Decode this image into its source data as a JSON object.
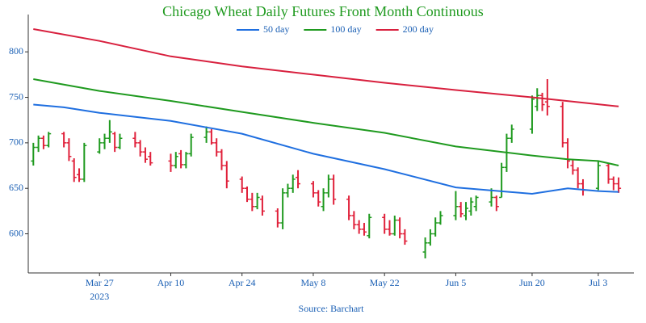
{
  "chart_data": {
    "type": "ohlc",
    "title": "Chicago Wheat Daily Futures Front Month Continuous",
    "source": "Source: Barchart",
    "up_color": "#1f9a1f",
    "down_color": "#e0203a",
    "x": [
      "2023-03-14",
      "2023-03-15",
      "2023-03-16",
      "2023-03-17",
      "2023-03-20",
      "2023-03-21",
      "2023-03-22",
      "2023-03-23",
      "2023-03-24",
      "2023-03-27",
      "2023-03-28",
      "2023-03-29",
      "2023-03-30",
      "2023-03-31",
      "2023-04-03",
      "2023-04-04",
      "2023-04-05",
      "2023-04-06",
      "2023-04-10",
      "2023-04-11",
      "2023-04-12",
      "2023-04-13",
      "2023-04-14",
      "2023-04-17",
      "2023-04-18",
      "2023-04-19",
      "2023-04-20",
      "2023-04-21",
      "2023-04-24",
      "2023-04-25",
      "2023-04-26",
      "2023-04-27",
      "2023-04-28",
      "2023-05-01",
      "2023-05-02",
      "2023-05-03",
      "2023-05-04",
      "2023-05-05",
      "2023-05-08",
      "2023-05-09",
      "2023-05-10",
      "2023-05-11",
      "2023-05-12",
      "2023-05-15",
      "2023-05-16",
      "2023-05-17",
      "2023-05-18",
      "2023-05-19",
      "2023-05-22",
      "2023-05-23",
      "2023-05-24",
      "2023-05-25",
      "2023-05-26",
      "2023-05-30",
      "2023-05-31",
      "2023-06-01",
      "2023-06-02",
      "2023-06-05",
      "2023-06-06",
      "2023-06-07",
      "2023-06-08",
      "2023-06-09",
      "2023-06-12",
      "2023-06-13",
      "2023-06-14",
      "2023-06-15",
      "2023-06-16",
      "2023-06-20",
      "2023-06-21",
      "2023-06-22",
      "2023-06-23",
      "2023-06-26",
      "2023-06-27",
      "2023-06-28",
      "2023-06-29",
      "2023-06-30",
      "2023-07-03",
      "2023-07-05",
      "2023-07-06",
      "2023-07-07"
    ],
    "open": [
      680,
      695,
      705,
      697,
      710,
      700,
      680,
      665,
      660,
      690,
      700,
      705,
      710,
      695,
      705,
      700,
      690,
      685,
      680,
      675,
      688,
      676,
      688,
      706,
      712,
      700,
      690,
      675,
      660,
      650,
      638,
      630,
      638,
      625,
      612,
      645,
      650,
      662,
      655,
      645,
      630,
      645,
      660,
      638,
      620,
      610,
      605,
      598,
      618,
      605,
      600,
      615,
      600,
      580,
      590,
      600,
      612,
      620,
      630,
      620,
      625,
      630,
      635,
      640,
      640,
      673,
      705,
      715,
      740,
      752,
      745,
      740,
      700,
      675,
      670,
      655,
      650,
      675,
      660,
      655
    ],
    "high": [
      700,
      708,
      708,
      712,
      712,
      705,
      683,
      672,
      700,
      705,
      710,
      725,
      712,
      710,
      712,
      703,
      695,
      690,
      688,
      690,
      692,
      690,
      710,
      718,
      715,
      705,
      693,
      680,
      663,
      652,
      645,
      645,
      642,
      628,
      650,
      655,
      665,
      670,
      658,
      648,
      650,
      665,
      665,
      642,
      625,
      615,
      612,
      622,
      622,
      615,
      620,
      618,
      605,
      596,
      605,
      618,
      625,
      647,
      635,
      635,
      640,
      642,
      650,
      642,
      678,
      710,
      720,
      752,
      760,
      755,
      770,
      745,
      705,
      682,
      673,
      660,
      680,
      678,
      663,
      662
    ],
    "low": [
      675,
      690,
      693,
      695,
      695,
      680,
      657,
      657,
      657,
      688,
      693,
      700,
      690,
      693,
      695,
      685,
      678,
      675,
      668,
      672,
      672,
      672,
      685,
      700,
      698,
      685,
      670,
      650,
      645,
      635,
      625,
      627,
      620,
      607,
      605,
      640,
      645,
      650,
      640,
      630,
      625,
      640,
      632,
      615,
      605,
      600,
      598,
      595,
      600,
      598,
      598,
      595,
      588,
      573,
      587,
      597,
      610,
      615,
      618,
      615,
      620,
      625,
      630,
      625,
      640,
      668,
      700,
      710,
      735,
      735,
      730,
      695,
      672,
      665,
      650,
      642,
      648,
      655,
      648,
      645
    ],
    "close": [
      695,
      705,
      697,
      710,
      700,
      685,
      662,
      660,
      697,
      700,
      705,
      712,
      695,
      705,
      700,
      690,
      682,
      678,
      675,
      685,
      676,
      688,
      706,
      712,
      700,
      690,
      675,
      658,
      650,
      638,
      630,
      640,
      625,
      612,
      645,
      650,
      660,
      655,
      645,
      635,
      645,
      660,
      638,
      620,
      610,
      605,
      602,
      618,
      605,
      600,
      615,
      600,
      592,
      590,
      600,
      612,
      620,
      630,
      622,
      628,
      635,
      640,
      640,
      630,
      673,
      705,
      715,
      748,
      752,
      742,
      740,
      700,
      680,
      670,
      655,
      648,
      675,
      660,
      655,
      650
    ],
    "series": [
      {
        "name": "50 day",
        "color": "#1f6fe0",
        "x": [
          "2023-03-14",
          "2023-03-20",
          "2023-03-27",
          "2023-04-10",
          "2023-04-17",
          "2023-04-24",
          "2023-05-08",
          "2023-05-22",
          "2023-06-05",
          "2023-06-20",
          "2023-06-27",
          "2023-07-03",
          "2023-07-07"
        ],
        "values": [
          742,
          739,
          733,
          724,
          717,
          710,
          688,
          671,
          651,
          644,
          650,
          647,
          646
        ]
      },
      {
        "name": "100 day",
        "color": "#1f9a1f",
        "x": [
          "2023-03-14",
          "2023-03-27",
          "2023-04-10",
          "2023-04-24",
          "2023-05-08",
          "2023-05-22",
          "2023-06-05",
          "2023-06-20",
          "2023-06-27",
          "2023-07-03",
          "2023-07-07"
        ],
        "values": [
          770,
          757,
          746,
          734,
          722,
          711,
          696,
          686,
          682,
          680,
          675
        ]
      },
      {
        "name": "200 day",
        "color": "#d8203e",
        "x": [
          "2023-03-14",
          "2023-03-27",
          "2023-04-10",
          "2023-04-24",
          "2023-05-08",
          "2023-05-22",
          "2023-06-05",
          "2023-06-20",
          "2023-07-07"
        ],
        "values": [
          825,
          812,
          795,
          784,
          775,
          766,
          758,
          750,
          740
        ]
      }
    ],
    "xlim": [
      "2023-03-13",
      "2023-07-10"
    ],
    "xticks": [
      {
        "value": "2023-03-27",
        "label": "Mar 27"
      },
      {
        "value": "2023-04-10",
        "label": "Apr 10"
      },
      {
        "value": "2023-04-24",
        "label": "Apr 24"
      },
      {
        "value": "2023-05-08",
        "label": "May 8"
      },
      {
        "value": "2023-05-22",
        "label": "May 22"
      },
      {
        "value": "2023-06-05",
        "label": "Jun 5"
      },
      {
        "value": "2023-06-20",
        "label": "Jun 20"
      },
      {
        "value": "2023-07-03",
        "label": "Jul 3"
      }
    ],
    "xtick_year": "2023",
    "ylim": [
      557,
      841
    ],
    "yticks": [
      600,
      650,
      700,
      750,
      800
    ],
    "legend": "top"
  }
}
